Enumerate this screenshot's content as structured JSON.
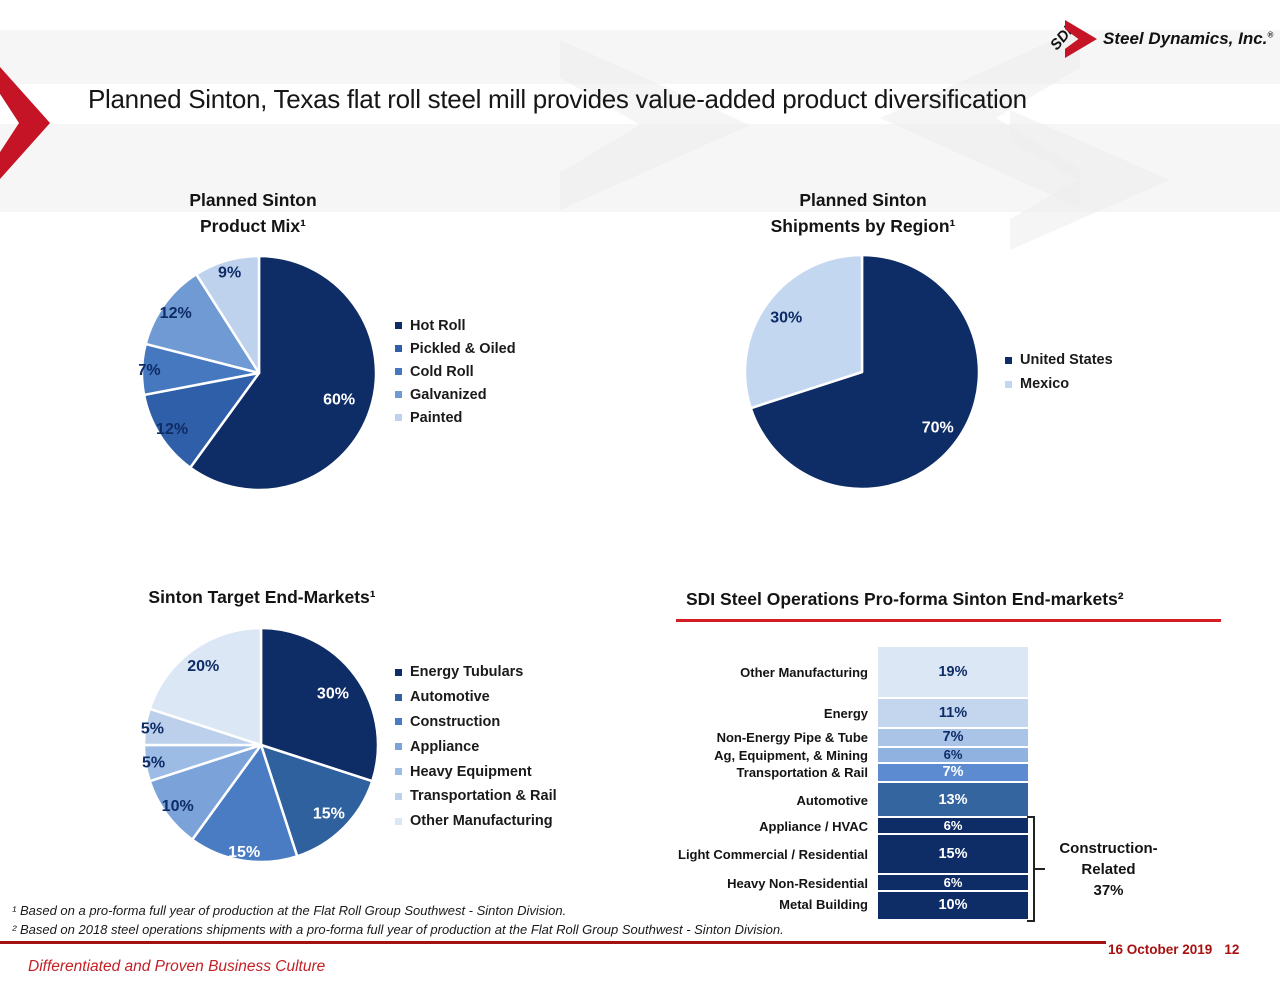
{
  "slide": {
    "title": "Planned Sinton, Texas flat roll steel mill provides value-added product diversification",
    "logo": {
      "monogram": "SDI",
      "company": "Steel Dynamics, Inc.",
      "registered": "®"
    },
    "footnotes": [
      "¹ Based on a pro-forma full year of production at the Flat Roll Group Southwest - Sinton Division.",
      "² Based on 2018 steel operations shipments with a pro-forma full year of production at the Flat Roll Group Southwest - Sinton Division."
    ],
    "footer": {
      "motto": "Differentiated and Proven Business Culture",
      "date": "16 October 2019",
      "page": "12"
    },
    "colors": {
      "brand_red": "#c41425",
      "underline_red": "#d41d24",
      "rule_red": "#a31111",
      "navy": "#0e2c66"
    }
  },
  "chart_data": [
    {
      "type": "pie",
      "title_lines": [
        "Planned Sinton",
        "Product Mix¹"
      ],
      "legend_position": "right",
      "slices": [
        {
          "label": "Hot Roll",
          "value": 60,
          "pct": "60%",
          "color": "#0e2c66",
          "label_color": "#ffffff",
          "label_rf": 0.72
        },
        {
          "label": "Pickled & Oiled",
          "value": 12,
          "pct": "12%",
          "color": "#2f5fa8",
          "label_color": "#0e2c66",
          "label_rf": 0.88
        },
        {
          "label": "Cold Roll",
          "value": 7,
          "pct": "7%",
          "color": "#4678c0",
          "label_color": "#0e2c66",
          "label_rf": 0.94
        },
        {
          "label": "Galvanized",
          "value": 12,
          "pct": "12%",
          "color": "#6f9ad3",
          "label_color": "#0e2c66",
          "label_rf": 0.88
        },
        {
          "label": "Painted",
          "value": 9,
          "pct": "9%",
          "color": "#bed2ee",
          "label_color": "#0e2c66",
          "label_rf": 0.9
        }
      ]
    },
    {
      "type": "pie",
      "title_lines": [
        "Planned Sinton",
        "Shipments by Region¹"
      ],
      "legend_position": "right",
      "slices": [
        {
          "label": "United States",
          "value": 70,
          "pct": "70%",
          "color": "#0e2c66",
          "label_color": "#ffffff",
          "label_rf": 0.8
        },
        {
          "label": "Mexico",
          "value": 30,
          "pct": "30%",
          "color": "#c3d7f0",
          "label_color": "#0e2c66",
          "label_rf": 0.8
        }
      ]
    },
    {
      "type": "pie",
      "title_lines": [
        "Sinton Target End-Markets¹"
      ],
      "legend_position": "right",
      "slices": [
        {
          "label": "Energy Tubulars",
          "value": 30,
          "pct": "30%",
          "color": "#0e2c66",
          "label_color": "#ffffff",
          "label_rf": 0.76
        },
        {
          "label": "Automotive",
          "value": 15,
          "pct": "15%",
          "color": "#30619f",
          "label_color": "#ffffff",
          "label_rf": 0.82
        },
        {
          "label": "Construction",
          "value": 15,
          "pct": "15%",
          "color": "#4a7cc4",
          "label_color": "#ffffff",
          "label_rf": 0.92
        },
        {
          "label": "Appliance",
          "value": 10,
          "pct": "10%",
          "color": "#7ba3da",
          "label_color": "#0e2c66",
          "label_rf": 0.88
        },
        {
          "label": "Heavy Equipment",
          "value": 5,
          "pct": "5%",
          "color": "#9cbbe5",
          "label_color": "#0e2c66",
          "label_rf": 0.93
        },
        {
          "label": "Transportation & Rail",
          "value": 5,
          "pct": "5%",
          "color": "#bcd0ec",
          "label_color": "#0e2c66",
          "label_rf": 0.94
        },
        {
          "label": "Other Manufacturing",
          "value": 20,
          "pct": "20%",
          "color": "#dce7f5",
          "label_color": "#0e2c66",
          "label_rf": 0.84
        }
      ]
    },
    {
      "type": "bar",
      "stacked": true,
      "title": "SDI Steel Operations Pro-forma Sinton End-markets²",
      "unit": "%",
      "rows": [
        {
          "label": "Other Manufacturing",
          "value": 19,
          "pct": "19%",
          "color": "#dce7f5",
          "text_color": "#0e2c66"
        },
        {
          "label": "Energy",
          "value": 11,
          "pct": "11%",
          "color": "#c4d6ee",
          "text_color": "#0e2c66"
        },
        {
          "label": "Non-Energy Pipe & Tube",
          "value": 7,
          "pct": "7%",
          "color": "#a9c4e7",
          "text_color": "#0e2c66"
        },
        {
          "label": "Ag, Equipment, & Mining",
          "value": 6,
          "pct": "6%",
          "color": "#8fb2e0",
          "text_color": "#0e2c66"
        },
        {
          "label": "Transportation & Rail",
          "value": 7,
          "pct": "7%",
          "color": "#5c8bd2",
          "text_color": "#ffffff"
        },
        {
          "label": "Automotive",
          "value": 13,
          "pct": "13%",
          "color": "#35659f",
          "text_color": "#ffffff"
        },
        {
          "label": "Appliance / HVAC",
          "value": 6,
          "pct": "6%",
          "color": "#0e2c66",
          "text_color": "#ffffff"
        },
        {
          "label": "Light Commercial / Residential",
          "value": 15,
          "pct": "15%",
          "color": "#0e2c66",
          "text_color": "#ffffff"
        },
        {
          "label": "Heavy Non-Residential",
          "value": 6,
          "pct": "6%",
          "color": "#0e2c66",
          "text_color": "#ffffff"
        },
        {
          "label": "Metal Building",
          "value": 10,
          "pct": "10%",
          "color": "#0e2c66",
          "text_color": "#ffffff"
        }
      ],
      "annotation": {
        "label_lines": [
          "Construction-",
          "Related",
          "37%"
        ],
        "covers_rows": [
          "Appliance / HVAC",
          "Light Commercial / Residential",
          "Heavy Non-Residential",
          "Metal Building"
        ]
      }
    }
  ]
}
